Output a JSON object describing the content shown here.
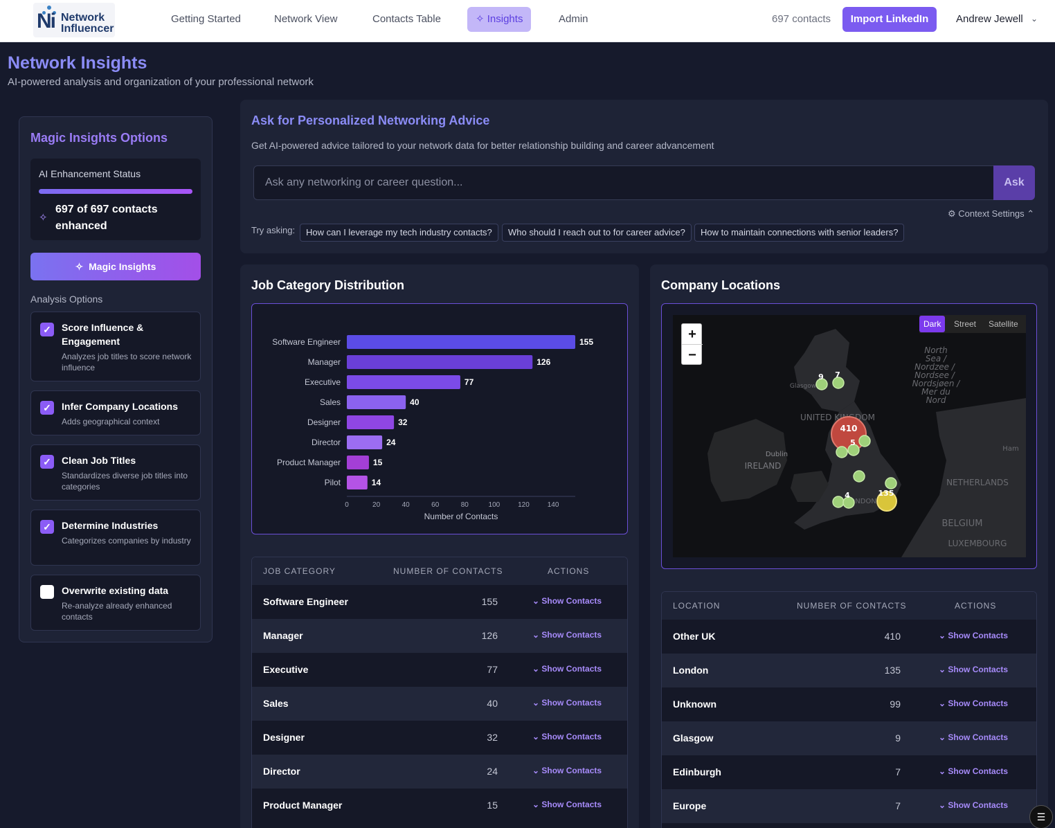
{
  "brand": {
    "logo_mark": "Ni",
    "name_line1": "Network",
    "name_line2": "Influencer"
  },
  "nav": {
    "items": [
      {
        "label": "Getting Started"
      },
      {
        "label": "Network View"
      },
      {
        "label": "Contacts Table"
      },
      {
        "label": "Insights",
        "active": true,
        "icon": "sparkle-icon"
      },
      {
        "label": "Admin"
      }
    ],
    "contacts_count": "697 contacts",
    "import_label": "Import LinkedIn",
    "user_name": "Andrew Jewell",
    "user_chevron": "⌄"
  },
  "header": {
    "title": "Network Insights",
    "subtitle": "AI-powered analysis and organization of your professional network"
  },
  "sidebar": {
    "title": "Magic Insights Options",
    "status_label": "AI Enhancement Status",
    "status_progress": 1.0,
    "status_text": "697 of 697 contacts enhanced",
    "magic_button": "Magic Insights",
    "analysis_label": "Analysis Options",
    "options": [
      {
        "title": "Score Influence & Engagement",
        "desc": "Analyzes job titles to score network influence",
        "checked": true
      },
      {
        "title": "Infer Company Locations",
        "desc": "Adds geographical context",
        "checked": true
      },
      {
        "title": "Clean Job Titles",
        "desc": "Standardizes diverse job titles into categories",
        "checked": true
      },
      {
        "title": "Determine Industries",
        "desc": "Categorizes companies by industry",
        "checked": true
      },
      {
        "title": "Overwrite existing data",
        "desc": "Re-analyze already enhanced contacts",
        "checked": false
      }
    ]
  },
  "ask": {
    "title": "Ask for Personalized Networking Advice",
    "subtitle": "Get AI-powered advice tailored to your network data for better relationship building and career advancement",
    "placeholder": "Ask any networking or career question...",
    "button": "Ask",
    "context_settings": "⚙ Context Settings ⌃",
    "try_label": "Try asking:",
    "suggestions": [
      "How can I leverage my tech industry contacts?",
      "Who should I reach out to for career advice?",
      "How to maintain connections with senior leaders?"
    ]
  },
  "job_panel": {
    "title": "Job Category Distribution",
    "table_headers": [
      "JOB CATEGORY",
      "NUMBER OF CONTACTS",
      "ACTIONS"
    ],
    "rows": [
      {
        "name": "Software Engineer",
        "count": "155",
        "action": "⌄  Show Contacts"
      },
      {
        "name": "Manager",
        "count": "126",
        "action": "⌄  Show Contacts"
      },
      {
        "name": "Executive",
        "count": "77",
        "action": "⌄  Show Contacts"
      },
      {
        "name": "Sales",
        "count": "40",
        "action": "⌄  Show Contacts"
      },
      {
        "name": "Designer",
        "count": "32",
        "action": "⌄  Show Contacts"
      },
      {
        "name": "Director",
        "count": "24",
        "action": "⌄  Show Contacts"
      },
      {
        "name": "Product Manager",
        "count": "15",
        "action": "⌄  Show Contacts"
      }
    ]
  },
  "chart_data": {
    "type": "bar",
    "orientation": "horizontal",
    "categories": [
      "Software Engineer",
      "Manager",
      "Executive",
      "Sales",
      "Designer",
      "Director",
      "Product Manager",
      "Pilot"
    ],
    "values": [
      155,
      126,
      77,
      40,
      32,
      24,
      15,
      14
    ],
    "colors": [
      "#5b4ce6",
      "#6a3fd8",
      "#7b4be8",
      "#8b62ef",
      "#8f46e4",
      "#9c6df2",
      "#a33fd6",
      "#b453e6"
    ],
    "xlabel": "Number of Contacts",
    "xticks": [
      0,
      20,
      40,
      60,
      80,
      100,
      120,
      140
    ],
    "xlim": [
      0,
      155
    ],
    "title": "",
    "ylabel": ""
  },
  "loc_panel": {
    "title": "Company Locations",
    "map_toggle": [
      "Dark",
      "Street",
      "Satellite"
    ],
    "zoom_in": "+",
    "zoom_out": "−",
    "map_labels": {
      "north_sea": "North Sea / Nordzee / Nordsee / Nordsjøen / Mer du Nord",
      "uk": "UNITED KINGDOM",
      "ireland": "IRELAND",
      "dublin": "Dublin",
      "glasgow": "Glasgow",
      "london": "LONDON",
      "netherlands": "NETHERLANDS",
      "belgium": "BELGIUM",
      "luxembourg": "LUXEMBOURG",
      "ham": "Ham"
    },
    "markers": [
      "410",
      "135",
      "9",
      "7",
      "5",
      "4"
    ],
    "table_headers": [
      "LOCATION",
      "NUMBER OF CONTACTS",
      "ACTIONS"
    ],
    "rows": [
      {
        "name": "Other UK",
        "count": "410",
        "action": "⌄  Show Contacts"
      },
      {
        "name": "London",
        "count": "135",
        "action": "⌄  Show Contacts"
      },
      {
        "name": "Unknown",
        "count": "99",
        "action": "⌄  Show Contacts"
      },
      {
        "name": "Glasgow",
        "count": "9",
        "action": "⌄  Show Contacts"
      },
      {
        "name": "Edinburgh",
        "count": "7",
        "action": "⌄  Show Contacts"
      },
      {
        "name": "Europe",
        "count": "7",
        "action": "⌄  Show Contacts"
      }
    ]
  },
  "icons": {
    "sparkle": "✧",
    "gear": "⚙",
    "chevron": "⌄",
    "check": "✓",
    "sidebar_toggle": "☰"
  }
}
